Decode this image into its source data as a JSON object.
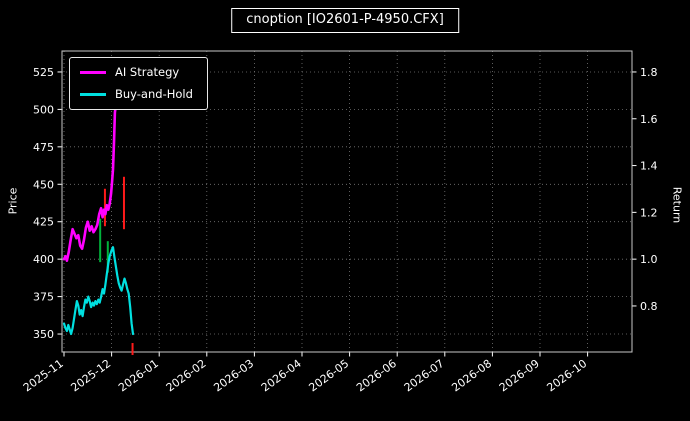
{
  "title": "cnoption [IO2601-P-4950.CFX]",
  "chart_data": {
    "type": "line",
    "title": "cnoption [IO2601-P-4950.CFX]",
    "background": "#000000",
    "text_color": "#ffffff",
    "grid": true,
    "grid_color": "#767676",
    "legend_position": "upper left",
    "x_unit": "month_index_from_2025-11",
    "x_axis": {
      "tick_labels": [
        "2025-11",
        "2025-12",
        "2026-01",
        "2026-02",
        "2026-03",
        "2026-04",
        "2026-05",
        "2026-06",
        "2026-07",
        "2026-08",
        "2026-09",
        "2026-10"
      ]
    },
    "left_axis": {
      "label": "Price",
      "ticks": [
        350,
        375,
        400,
        425,
        450,
        475,
        500,
        525
      ],
      "min": 338,
      "max": 539
    },
    "right_axis": {
      "label": "Return",
      "ticks": [
        0.8,
        1.0,
        1.2,
        1.4,
        1.6,
        1.8
      ],
      "base_return": 1.0,
      "base_price": 400,
      "price_per_return_unit": 156.25
    },
    "series": [
      {
        "name": "AI Strategy",
        "color": "#ff00ff",
        "width": 2.6,
        "points": [
          [
            0.0,
            400
          ],
          [
            0.03,
            402
          ],
          [
            0.06,
            399
          ],
          [
            0.1,
            405
          ],
          [
            0.14,
            413
          ],
          [
            0.18,
            420
          ],
          [
            0.22,
            417
          ],
          [
            0.26,
            414
          ],
          [
            0.3,
            416
          ],
          [
            0.34,
            409
          ],
          [
            0.38,
            407
          ],
          [
            0.42,
            413
          ],
          [
            0.46,
            421
          ],
          [
            0.5,
            425
          ],
          [
            0.54,
            419
          ],
          [
            0.58,
            422
          ],
          [
            0.62,
            418
          ],
          [
            0.66,
            420
          ],
          [
            0.7,
            423
          ],
          [
            0.74,
            430
          ],
          [
            0.78,
            434
          ],
          [
            0.81,
            428
          ],
          [
            0.84,
            433
          ],
          [
            0.87,
            430
          ],
          [
            0.9,
            436
          ],
          [
            0.93,
            433
          ],
          [
            0.96,
            437
          ],
          [
            0.99,
            444
          ],
          [
            1.01,
            452
          ],
          [
            1.03,
            460
          ],
          [
            1.05,
            478
          ],
          [
            1.07,
            498
          ],
          [
            1.09,
            503
          ],
          [
            1.11,
            505
          ],
          [
            1.13,
            501
          ],
          [
            1.15,
            506
          ],
          [
            1.17,
            504
          ],
          [
            1.2,
            509
          ],
          [
            1.23,
            512
          ],
          [
            1.26,
            515
          ],
          [
            1.29,
            517
          ]
        ]
      },
      {
        "name": "Buy-and-Hold",
        "color": "#00e0e0",
        "width": 2.2,
        "points": [
          [
            0.0,
            357
          ],
          [
            0.03,
            354
          ],
          [
            0.06,
            352
          ],
          [
            0.09,
            356
          ],
          [
            0.12,
            353
          ],
          [
            0.15,
            350
          ],
          [
            0.18,
            354
          ],
          [
            0.21,
            360
          ],
          [
            0.24,
            366
          ],
          [
            0.27,
            372
          ],
          [
            0.3,
            369
          ],
          [
            0.33,
            363
          ],
          [
            0.36,
            366
          ],
          [
            0.39,
            362
          ],
          [
            0.42,
            368
          ],
          [
            0.45,
            373
          ],
          [
            0.48,
            371
          ],
          [
            0.51,
            375
          ],
          [
            0.54,
            372
          ],
          [
            0.57,
            368
          ],
          [
            0.6,
            371
          ],
          [
            0.63,
            369
          ],
          [
            0.66,
            372
          ],
          [
            0.69,
            370
          ],
          [
            0.72,
            373
          ],
          [
            0.75,
            371
          ],
          [
            0.78,
            375
          ],
          [
            0.81,
            380
          ],
          [
            0.84,
            377
          ],
          [
            0.87,
            383
          ],
          [
            0.9,
            390
          ],
          [
            0.93,
            397
          ],
          [
            0.96,
            402
          ],
          [
            1.0,
            406
          ],
          [
            1.03,
            408
          ],
          [
            1.06,
            401
          ],
          [
            1.09,
            395
          ],
          [
            1.12,
            389
          ],
          [
            1.15,
            384
          ],
          [
            1.18,
            381
          ],
          [
            1.21,
            379
          ],
          [
            1.24,
            383
          ],
          [
            1.27,
            387
          ],
          [
            1.3,
            384
          ],
          [
            1.33,
            380
          ],
          [
            1.36,
            377
          ],
          [
            1.39,
            368
          ],
          [
            1.42,
            357
          ],
          [
            1.45,
            350
          ]
        ]
      }
    ],
    "candles": [
      {
        "x": 0.76,
        "from": 398,
        "to": 427,
        "color": "#00b33c"
      },
      {
        "x": 0.86,
        "from": 422,
        "to": 447,
        "color": "#ff1a1a"
      },
      {
        "x": 0.92,
        "from": 391,
        "to": 412,
        "color": "#00b33c"
      },
      {
        "x": 1.26,
        "from": 420,
        "to": 455,
        "color": "#ff1a1a"
      },
      {
        "x": 1.44,
        "from": 336,
        "to": 344,
        "color": "#ff1a1a"
      }
    ]
  }
}
